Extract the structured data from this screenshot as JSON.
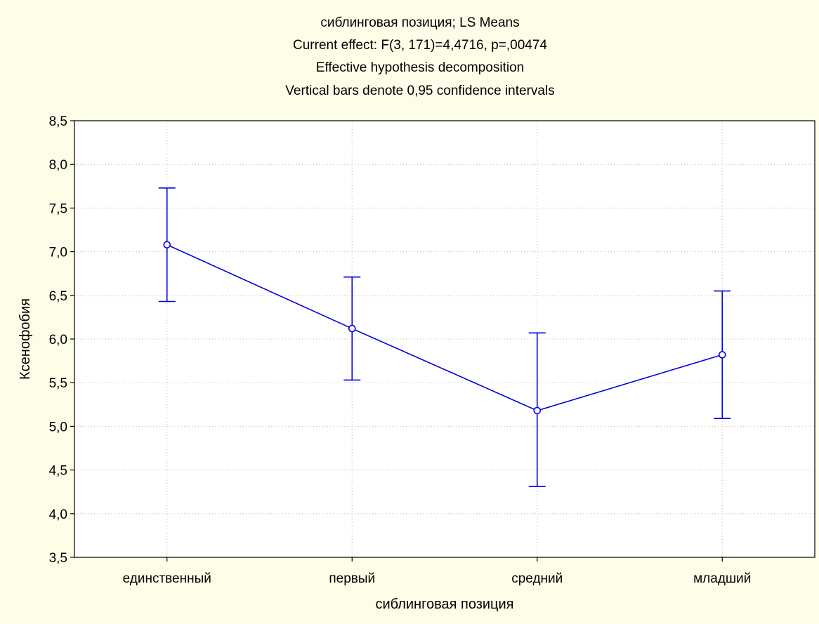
{
  "chart_data": {
    "type": "line",
    "title_lines": [
      "сиблинговая позиция; LS Means",
      "Current effect: F(3, 171)=4,4716, p=,00474",
      "Effective hypothesis decomposition",
      "Vertical bars denote 0,95 confidence intervals"
    ],
    "xlabel": "сиблинговая позиция",
    "ylabel": "Ксенофобия",
    "categories": [
      "единственный",
      "первый",
      "средний",
      "младший"
    ],
    "series": [
      {
        "values": [
          7.08,
          6.12,
          5.18,
          5.82
        ],
        "ci_lower": [
          6.43,
          5.53,
          4.31,
          5.09
        ],
        "ci_upper": [
          7.73,
          6.71,
          6.07,
          6.55
        ]
      }
    ],
    "ylim": [
      3.5,
      8.5
    ],
    "yticks": [
      3.5,
      4.0,
      4.5,
      5.0,
      5.5,
      6.0,
      6.5,
      7.0,
      7.5,
      8.0,
      8.5
    ],
    "ytick_labels": [
      "3,5",
      "4,0",
      "4,5",
      "5,0",
      "5,5",
      "6,0",
      "6,5",
      "7,0",
      "7,5",
      "8,0",
      "8,5"
    ],
    "grid": true,
    "colors": {
      "series": "#0000e0",
      "background": "#fdfde8",
      "plot_background": "#ffffff",
      "grid": "#b8b8b8"
    }
  }
}
